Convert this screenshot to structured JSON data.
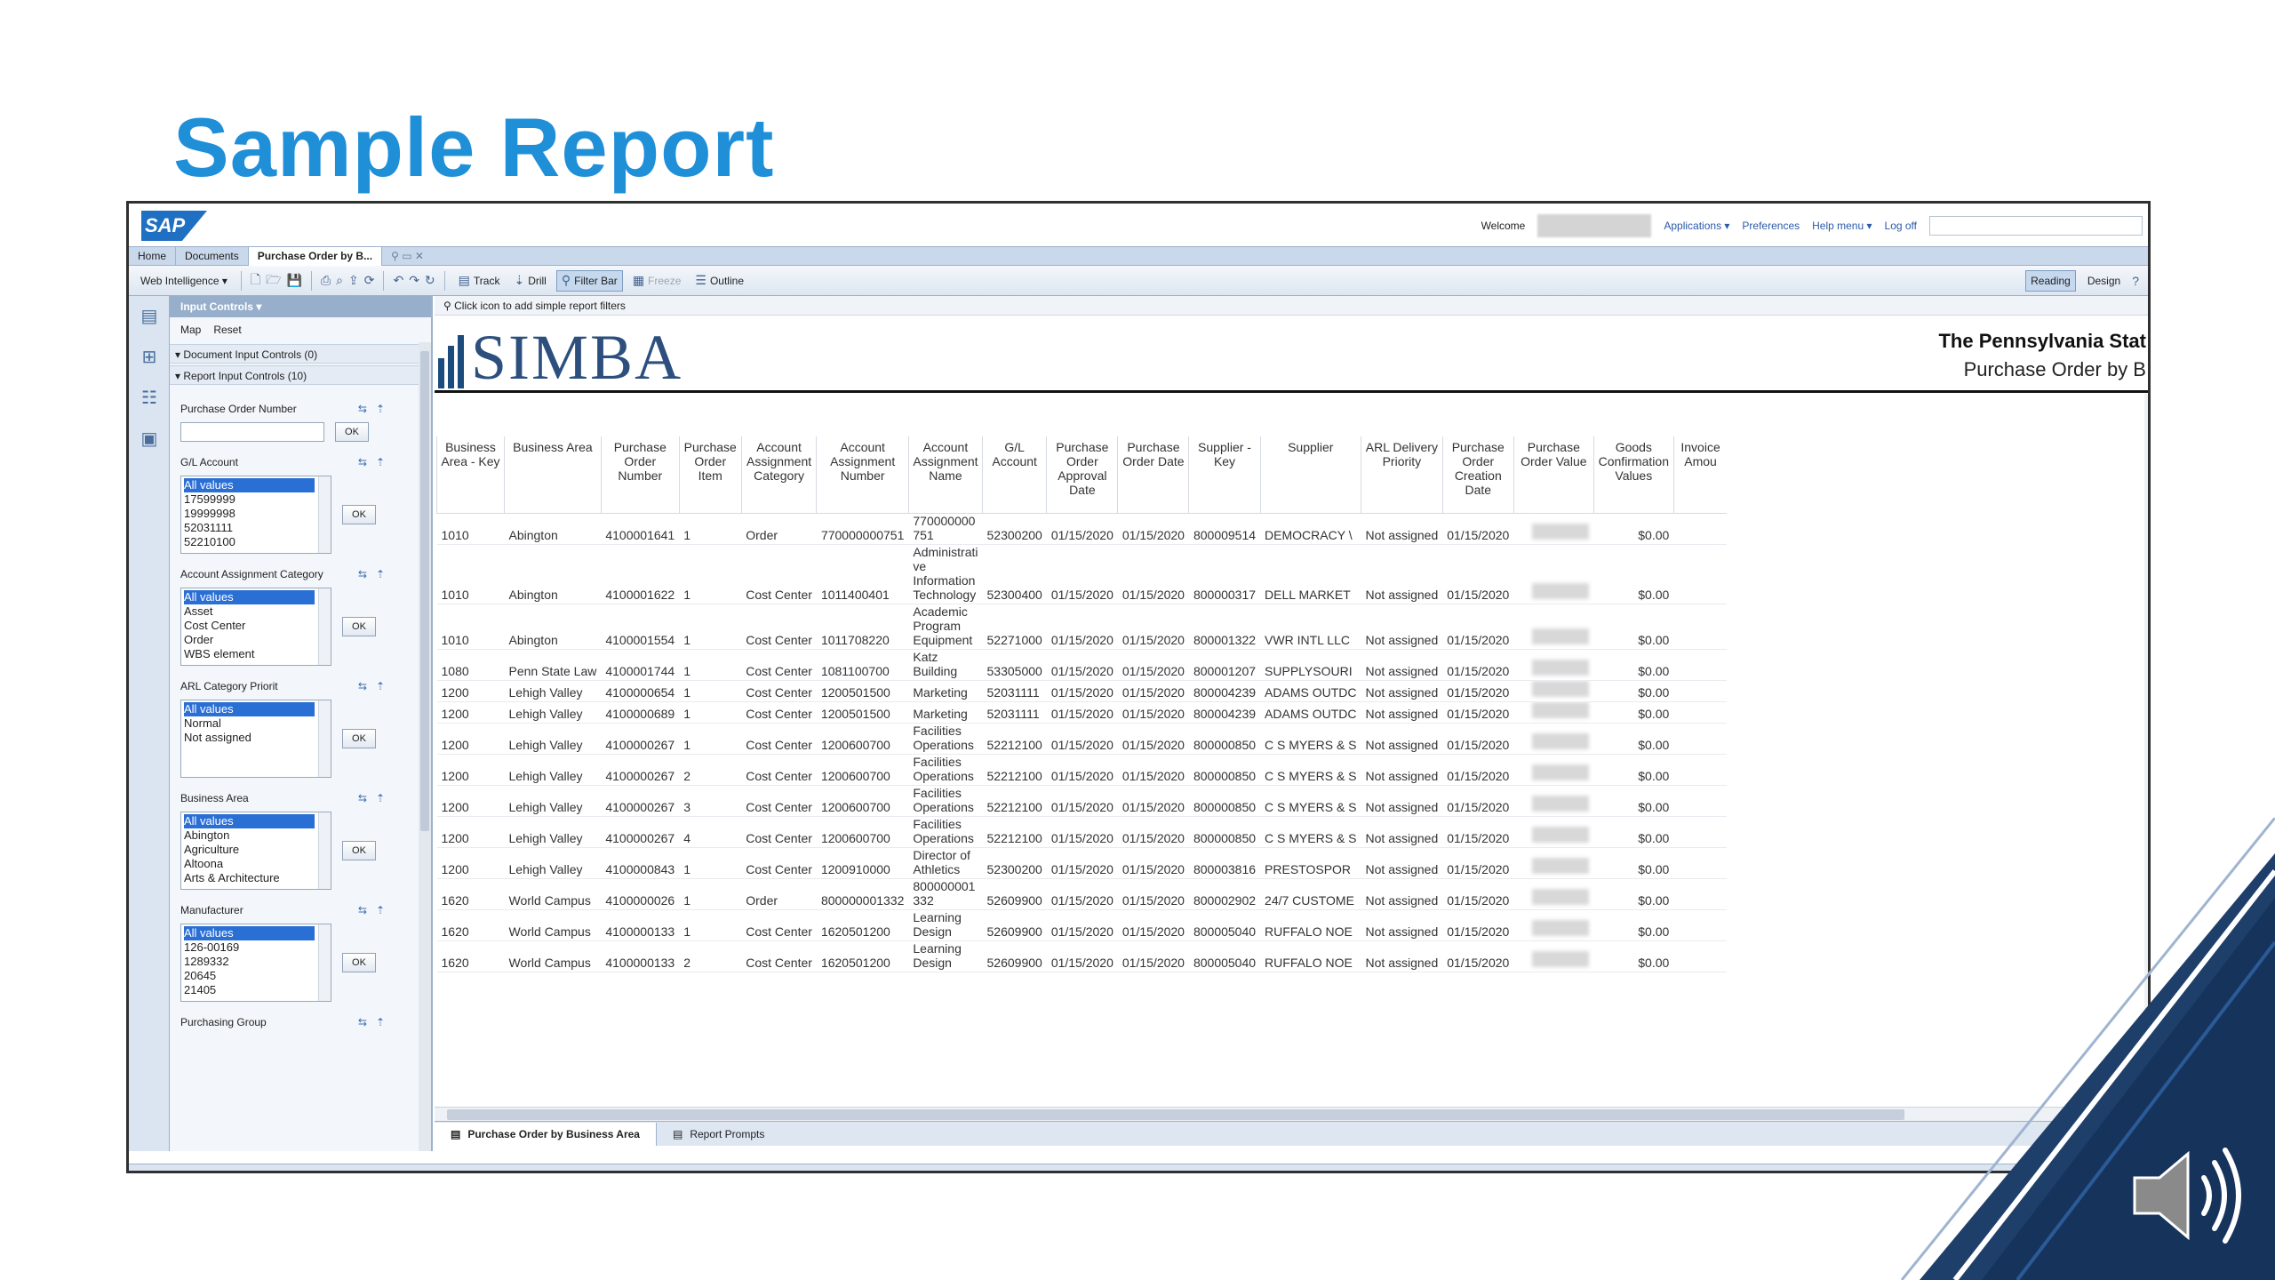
{
  "slide": {
    "title": "Sample Report"
  },
  "header": {
    "logo": "SAP",
    "welcome": "Welcome",
    "links": [
      "Applications ▾",
      "Preferences",
      "Help menu ▾",
      "Log off"
    ]
  },
  "tabs": [
    "Home",
    "Documents",
    "Purchase Order by B..."
  ],
  "toolbar": {
    "app": "Web Intelligence ▾",
    "track": "Track",
    "drill": "Drill",
    "filter_bar": "Filter Bar",
    "freeze": "Freeze",
    "outline": "Outline",
    "reading": "Reading",
    "design": "Design"
  },
  "input_panel": {
    "title": "Input Controls ▾",
    "actions": [
      "Map",
      "Reset"
    ],
    "document_section": "Document Input Controls (0)",
    "report_section": "Report Input Controls (10)",
    "ok": "OK",
    "controls": [
      {
        "label": "Purchase Order Number",
        "type": "text",
        "values": []
      },
      {
        "label": "G/L Account",
        "type": "list",
        "values": [
          "All values",
          "17599999",
          "19999998",
          "52031111",
          "52210100"
        ]
      },
      {
        "label": "Account Assignment Category",
        "type": "list",
        "values": [
          "All values",
          "Asset",
          "Cost Center",
          "Order",
          "WBS element"
        ]
      },
      {
        "label": "ARL Category Priorit",
        "type": "list",
        "values": [
          "All values",
          "Normal",
          "Not assigned"
        ]
      },
      {
        "label": "Business Area",
        "type": "list",
        "values": [
          "All values",
          "Abington",
          "Agriculture",
          "Altoona",
          "Arts & Architecture"
        ]
      },
      {
        "label": "Manufacturer",
        "type": "list",
        "values": [
          "All values",
          "126-00169",
          "1289332",
          "20645",
          "21405"
        ]
      },
      {
        "label": "Purchasing Group",
        "type": "none",
        "values": []
      }
    ]
  },
  "report": {
    "filter_hint": "Click icon to add simple report filters",
    "logo_text": "SIMBA",
    "org": "The Pennsylvania Stat",
    "subtitle": "Purchase Order by B",
    "columns": [
      "Business Area - Key",
      "Business Area",
      "Purchase Order Number",
      "Purchase Order Item",
      "Account Assignment Category",
      "Account Assignment Number",
      "Account Assignment Name",
      "G/L Account",
      "Purchase Order Approval Date",
      "Purchase Order Date",
      "Supplier - Key",
      "Supplier",
      "ARL Delivery Priority",
      "Purchase Order Creation Date",
      "Purchase Order Value",
      "Goods Confirmation Values",
      "Invoice Amou"
    ],
    "rows": [
      [
        "1010",
        "Abington",
        "4100001641",
        "1",
        "Order",
        "770000000751",
        "770000000 751",
        "52300200",
        "01/15/2020",
        "01/15/2020",
        "800009514",
        "DEMOCRACY \\",
        "Not assigned",
        "01/15/2020",
        "",
        "$0.00",
        ""
      ],
      [
        "1010",
        "Abington",
        "4100001622",
        "1",
        "Cost Center",
        "1011400401",
        "Administrati ve Information Technology",
        "52300400",
        "01/15/2020",
        "01/15/2020",
        "800000317",
        "DELL MARKET",
        "Not assigned",
        "01/15/2020",
        "",
        "$0.00",
        ""
      ],
      [
        "1010",
        "Abington",
        "4100001554",
        "1",
        "Cost Center",
        "1011708220",
        "Academic Program Equipment",
        "52271000",
        "01/15/2020",
        "01/15/2020",
        "800001322",
        "VWR INTL LLC",
        "Not assigned",
        "01/15/2020",
        "",
        "$0.00",
        ""
      ],
      [
        "1080",
        "Penn State Law",
        "4100001744",
        "1",
        "Cost Center",
        "1081100700",
        "Katz Building",
        "53305000",
        "01/15/2020",
        "01/15/2020",
        "800001207",
        "SUPPLYSOURI",
        "Not assigned",
        "01/15/2020",
        "",
        "$0.00",
        ""
      ],
      [
        "1200",
        "Lehigh Valley",
        "4100000654",
        "1",
        "Cost Center",
        "1200501500",
        "Marketing",
        "52031111",
        "01/15/2020",
        "01/15/2020",
        "800004239",
        "ADAMS OUTDC",
        "Not assigned",
        "01/15/2020",
        "",
        "$0.00",
        ""
      ],
      [
        "1200",
        "Lehigh Valley",
        "4100000689",
        "1",
        "Cost Center",
        "1200501500",
        "Marketing",
        "52031111",
        "01/15/2020",
        "01/15/2020",
        "800004239",
        "ADAMS OUTDC",
        "Not assigned",
        "01/15/2020",
        "",
        "$0.00",
        ""
      ],
      [
        "1200",
        "Lehigh Valley",
        "4100000267",
        "1",
        "Cost Center",
        "1200600700",
        "Facilities Operations",
        "52212100",
        "01/15/2020",
        "01/15/2020",
        "800000850",
        "C S MYERS & S",
        "Not assigned",
        "01/15/2020",
        "",
        "$0.00",
        ""
      ],
      [
        "1200",
        "Lehigh Valley",
        "4100000267",
        "2",
        "Cost Center",
        "1200600700",
        "Facilities Operations",
        "52212100",
        "01/15/2020",
        "01/15/2020",
        "800000850",
        "C S MYERS & S",
        "Not assigned",
        "01/15/2020",
        "",
        "$0.00",
        ""
      ],
      [
        "1200",
        "Lehigh Valley",
        "4100000267",
        "3",
        "Cost Center",
        "1200600700",
        "Facilities Operations",
        "52212100",
        "01/15/2020",
        "01/15/2020",
        "800000850",
        "C S MYERS & S",
        "Not assigned",
        "01/15/2020",
        "",
        "$0.00",
        ""
      ],
      [
        "1200",
        "Lehigh Valley",
        "4100000267",
        "4",
        "Cost Center",
        "1200600700",
        "Facilities Operations",
        "52212100",
        "01/15/2020",
        "01/15/2020",
        "800000850",
        "C S MYERS & S",
        "Not assigned",
        "01/15/2020",
        "",
        "$0.00",
        ""
      ],
      [
        "1200",
        "Lehigh Valley",
        "4100000843",
        "1",
        "Cost Center",
        "1200910000",
        "Director of Athletics",
        "52300200",
        "01/15/2020",
        "01/15/2020",
        "800003816",
        "PRESTOSPOR",
        "Not assigned",
        "01/15/2020",
        "",
        "$0.00",
        ""
      ],
      [
        "1620",
        "World Campus",
        "4100000026",
        "1",
        "Order",
        "800000001332",
        "800000001 332",
        "52609900",
        "01/15/2020",
        "01/15/2020",
        "800002902",
        "24/7 CUSTOME",
        "Not assigned",
        "01/15/2020",
        "",
        "$0.00",
        ""
      ],
      [
        "1620",
        "World Campus",
        "4100000133",
        "1",
        "Cost Center",
        "1620501200",
        "Learning Design",
        "52609900",
        "01/15/2020",
        "01/15/2020",
        "800005040",
        "RUFFALO NOE",
        "Not assigned",
        "01/15/2020",
        "",
        "$0.00",
        ""
      ],
      [
        "1620",
        "World Campus",
        "4100000133",
        "2",
        "Cost Center",
        "1620501200",
        "Learning Design",
        "52609900",
        "01/15/2020",
        "01/15/2020",
        "800005040",
        "RUFFALO NOE",
        "Not assigned",
        "01/15/2020",
        "",
        "$0.00",
        ""
      ]
    ],
    "report_tabs": [
      "Purchase Order by Business Area",
      "Report Prompts"
    ]
  }
}
